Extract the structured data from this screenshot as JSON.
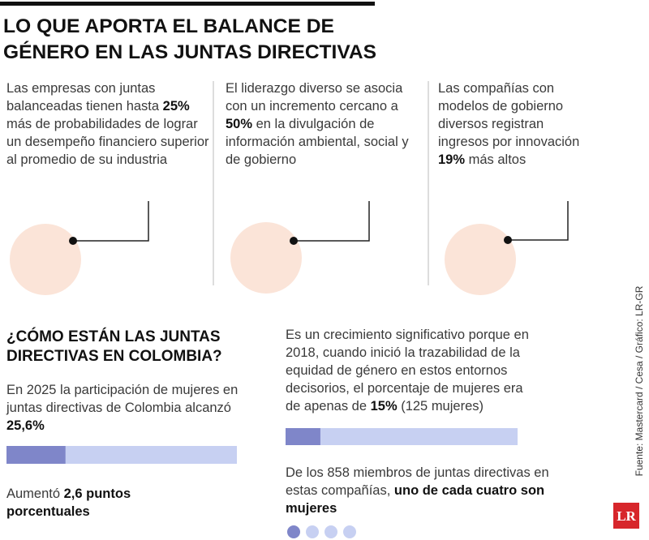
{
  "header": {
    "title": [
      "LO QUE APORTA EL BALANCE DE",
      "GÉNERO EN LAS JUNTAS DIRECTIVAS"
    ]
  },
  "cards": [
    {
      "before": "Las empresas con juntas balanceadas tienen hasta ",
      "highlight": "25%",
      "after": " más de probabilidades de lograr un desempeño financiero superior al promedio de su industria",
      "value": 25,
      "lim": [
        0,
        100
      ]
    },
    {
      "before": "El liderazgo diverso se asocia con un incremento cercano a ",
      "highlight": "50%",
      "after": " en la divulgación de información ambiental, social y de gobierno",
      "value": 50,
      "lim": [
        0,
        100
      ]
    },
    {
      "before": "Las compañías con modelos de gobierno diversos registran ingresos por innovación ",
      "highlight": "19%",
      "after": " más altos",
      "value": 19,
      "lim": [
        0,
        100
      ]
    }
  ],
  "colombia": {
    "title": "¿CÓMO ESTÁN LAS JUNTAS DIRECTIVAS EN COLOMBIA?",
    "current": {
      "before": "En 2025 la participación de mujeres en juntas directivas de Colombia alcanzó ",
      "highlight": "25,6%",
      "value": 25.6,
      "xlim": [
        0,
        100
      ]
    },
    "increase": {
      "before": "Aumentó ",
      "highlight": "2,6 puntos porcentuales"
    },
    "past": {
      "before": "Es un crecimiento significativo porque en 2018, cuando inició la trazabilidad de la equidad de género en estos entornos decisorios, el porcentaje de mujeres era de apenas de ",
      "highlight": "15%",
      "after": " (125 mujeres)",
      "value": 15,
      "xlim": [
        0,
        100
      ]
    },
    "members": {
      "before": "De los 858 miembros de juntas directivas en estas compañías, ",
      "highlight": "uno de cada cuatro son mujeres"
    }
  },
  "source": "Fuente: Mastercard / Cesa / Gráfico: LR-GR",
  "logo": "LR"
}
